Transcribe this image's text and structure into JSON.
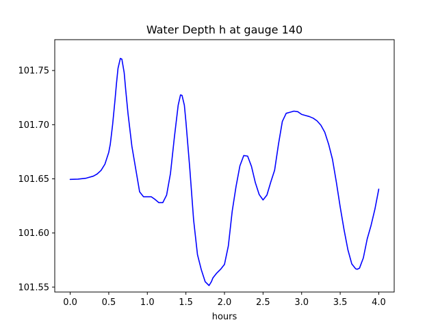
{
  "chart_data": {
    "type": "line",
    "title": "Water Depth h at gauge 140",
    "xlabel": "hours",
    "ylabel": "",
    "xlim": [
      -0.2,
      4.2
    ],
    "ylim": [
      101.5455,
      101.7785
    ],
    "xticks": [
      0.0,
      0.5,
      1.0,
      1.5,
      2.0,
      2.5,
      3.0,
      3.5,
      4.0
    ],
    "xtick_labels": [
      "0.0",
      "0.5",
      "1.0",
      "1.5",
      "2.0",
      "2.5",
      "3.0",
      "3.5",
      "4.0"
    ],
    "yticks": [
      101.55,
      101.6,
      101.65,
      101.7,
      101.75
    ],
    "ytick_labels": [
      "101.55",
      "101.60",
      "101.65",
      "101.70",
      "101.75"
    ],
    "grid": false,
    "series": [
      {
        "color": "#0000ff",
        "x": [
          0.0,
          0.1,
          0.2,
          0.3,
          0.35,
          0.4,
          0.45,
          0.5,
          0.52,
          0.55,
          0.58,
          0.6,
          0.62,
          0.65,
          0.67,
          0.7,
          0.72,
          0.75,
          0.8,
          0.85,
          0.9,
          0.95,
          1.0,
          1.05,
          1.1,
          1.15,
          1.2,
          1.25,
          1.3,
          1.35,
          1.4,
          1.43,
          1.45,
          1.48,
          1.5,
          1.55,
          1.6,
          1.65,
          1.7,
          1.75,
          1.8,
          1.83,
          1.85,
          1.9,
          1.95,
          2.0,
          2.05,
          2.1,
          2.15,
          2.2,
          2.25,
          2.3,
          2.35,
          2.4,
          2.45,
          2.5,
          2.55,
          2.6,
          2.65,
          2.7,
          2.75,
          2.8,
          2.85,
          2.9,
          2.95,
          3.0,
          3.05,
          3.1,
          3.15,
          3.2,
          3.25,
          3.3,
          3.35,
          3.4,
          3.45,
          3.5,
          3.55,
          3.6,
          3.65,
          3.7,
          3.72,
          3.75,
          3.8,
          3.85,
          3.9,
          3.95,
          4.0
        ],
        "y": [
          101.6495,
          101.6497,
          101.6505,
          101.6525,
          101.6545,
          101.6578,
          101.6635,
          101.6745,
          101.682,
          101.7,
          101.722,
          101.738,
          101.752,
          101.7612,
          101.7605,
          101.748,
          101.732,
          101.71,
          101.68,
          101.659,
          101.638,
          101.6335,
          101.6335,
          101.6335,
          101.631,
          101.628,
          101.628,
          101.635,
          101.655,
          101.688,
          101.718,
          101.7275,
          101.727,
          101.718,
          101.703,
          101.66,
          101.612,
          101.58,
          101.566,
          101.555,
          101.5515,
          101.555,
          101.5585,
          101.563,
          101.5665,
          101.571,
          101.588,
          101.62,
          101.643,
          101.662,
          101.6715,
          101.671,
          101.6615,
          101.6465,
          101.6355,
          101.6305,
          101.635,
          101.647,
          101.658,
          101.682,
          101.703,
          101.7105,
          101.7115,
          101.7125,
          101.712,
          101.7095,
          101.7085,
          101.7075,
          101.706,
          101.7035,
          101.6995,
          101.693,
          101.682,
          101.668,
          101.647,
          101.624,
          101.603,
          101.5845,
          101.5715,
          101.567,
          101.5665,
          101.5675,
          101.577,
          101.5945,
          101.607,
          101.622,
          101.6405
        ]
      }
    ]
  }
}
